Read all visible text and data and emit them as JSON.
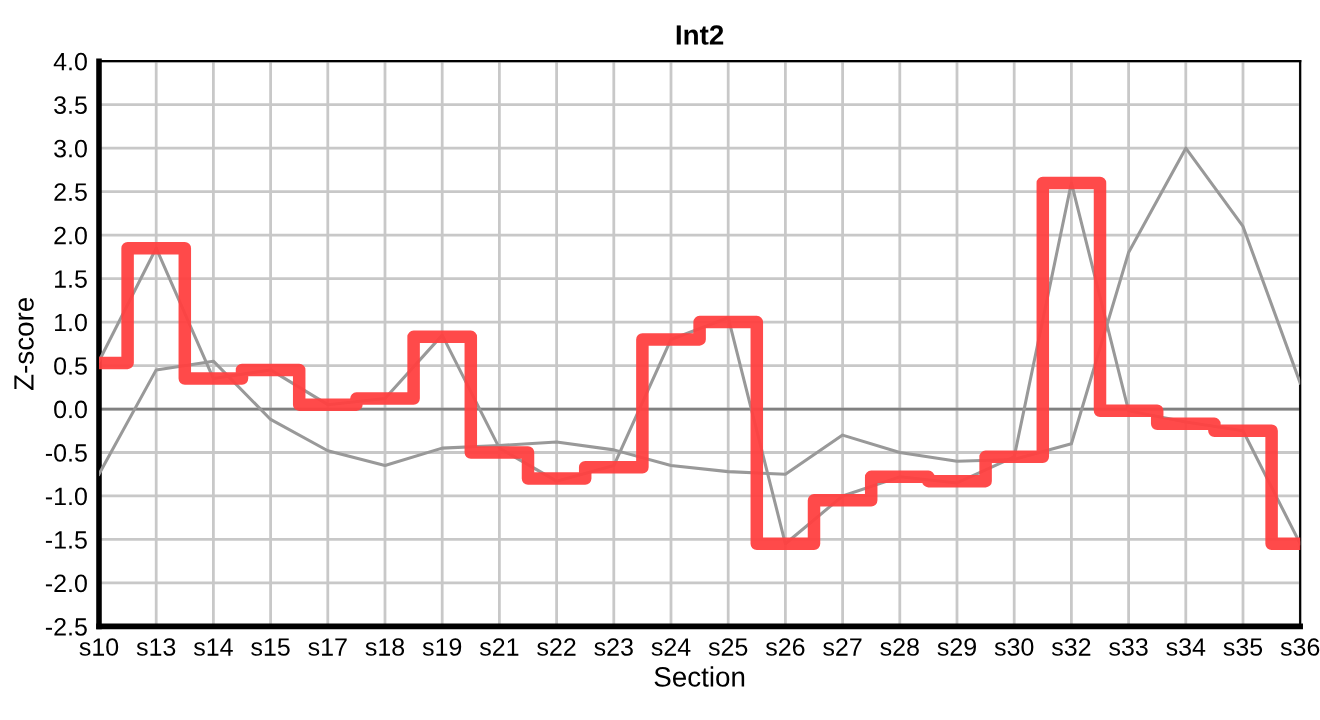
{
  "chart_data": {
    "type": "line",
    "title": "Int2",
    "xlabel": "Section",
    "ylabel": "Z-score",
    "categories": [
      "s10",
      "s13",
      "s14",
      "s15",
      "s17",
      "s18",
      "s19",
      "s21",
      "s22",
      "s23",
      "s24",
      "s25",
      "s26",
      "s27",
      "s28",
      "s29",
      "s30",
      "s32",
      "s33",
      "s34",
      "s35",
      "s36"
    ],
    "series": [
      {
        "color": "#999999",
        "values": [
          -0.75,
          0.45,
          0.55,
          -0.12,
          -0.48,
          -0.65,
          -0.45,
          -0.42,
          -0.38,
          -0.47,
          -0.65,
          -0.72,
          -0.75,
          -0.3,
          -0.5,
          -0.6,
          -0.58,
          -0.4,
          1.8,
          3.0,
          2.1,
          0.3
        ]
      },
      {
        "color": "#999999",
        "values": [
          0.55,
          1.85,
          0.35,
          0.45,
          0.05,
          0.12,
          0.85,
          -0.45,
          -0.83,
          -0.65,
          0.8,
          1.05,
          -1.55,
          -1.0,
          -0.78,
          -0.85,
          -0.55,
          2.6,
          -0.02,
          -0.15,
          -0.25,
          -1.55
        ]
      },
      {
        "type": "step",
        "color": "#ff4040",
        "values": [
          0.53,
          1.85,
          0.35,
          0.45,
          0.05,
          0.12,
          0.83,
          -0.5,
          -0.8,
          -0.67,
          0.8,
          1.0,
          -1.55,
          -1.05,
          -0.78,
          -0.83,
          -0.55,
          2.6,
          -0.02,
          -0.17,
          -0.25,
          -1.55
        ]
      }
    ],
    "ylim": [
      -2.5,
      4.0
    ],
    "yticks": [
      {
        "value": -2.5,
        "label": "-2.5"
      },
      {
        "value": -2.0,
        "label": "-2.0"
      },
      {
        "value": -1.5,
        "label": "-1.5"
      },
      {
        "value": -1.0,
        "label": "-1.0"
      },
      {
        "value": -0.5,
        "label": "-0.5"
      },
      {
        "value": 0.0,
        "label": "0.0"
      },
      {
        "value": 0.5,
        "label": "0.5"
      },
      {
        "value": 1.0,
        "label": "1.0"
      },
      {
        "value": 1.5,
        "label": "1.5"
      },
      {
        "value": 2.0,
        "label": "2.0"
      },
      {
        "value": 2.5,
        "label": "2.5"
      },
      {
        "value": 3.0,
        "label": "3.0"
      },
      {
        "value": 3.5,
        "label": "3.5"
      },
      {
        "value": 4.0,
        "label": "4.0"
      }
    ],
    "ref_lines": [
      {
        "axis": "y",
        "value": 0,
        "color": "#808080"
      }
    ],
    "grid": true,
    "legend": false,
    "marker": "none",
    "line_style": "solid"
  }
}
